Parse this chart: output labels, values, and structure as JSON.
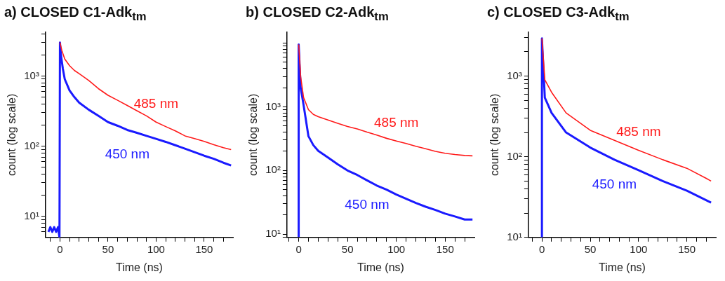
{
  "chart_data": [
    {
      "type": "line",
      "title": "a) CLOSED C1-Adk$_{tm}$",
      "xlabel": "Time (ns)",
      "ylabel": "count (log scale)",
      "log": true,
      "grid": false,
      "legend": false,
      "marker": "none",
      "xlim": [
        -15,
        180
      ],
      "ylim": [
        5,
        4200
      ],
      "xticks": [
        {
          "value": -10,
          "label": null
        },
        0,
        {
          "value": 10,
          "label": null
        },
        {
          "value": 20,
          "label": null
        },
        {
          "value": 30,
          "label": null
        },
        {
          "value": 40,
          "label": null
        },
        50,
        {
          "value": 60,
          "label": null
        },
        {
          "value": 70,
          "label": null
        },
        {
          "value": 80,
          "label": null
        },
        {
          "value": 90,
          "label": null
        },
        100,
        {
          "value": 110,
          "label": null
        },
        {
          "value": 120,
          "label": null
        },
        {
          "value": 130,
          "label": null
        },
        {
          "value": 140,
          "label": null
        },
        150,
        {
          "value": 160,
          "label": null
        },
        {
          "value": 170,
          "label": null
        }
      ],
      "yticks": [
        {
          "value": 6,
          "label": null
        },
        {
          "value": 7,
          "label": null
        },
        {
          "value": 8,
          "label": null
        },
        {
          "value": 9,
          "label": null
        },
        {
          "value": 10,
          "label": "10¹"
        },
        {
          "value": 20,
          "label": null
        },
        {
          "value": 30,
          "label": null
        },
        {
          "value": 40,
          "label": null
        },
        {
          "value": 50,
          "label": null
        },
        {
          "value": 60,
          "label": null
        },
        {
          "value": 70,
          "label": null
        },
        {
          "value": 80,
          "label": null
        },
        {
          "value": 90,
          "label": null
        },
        {
          "value": 100,
          "label": "10²"
        },
        {
          "value": 200,
          "label": null
        },
        {
          "value": 300,
          "label": null
        },
        {
          "value": 400,
          "label": null
        },
        {
          "value": 500,
          "label": null
        },
        {
          "value": 600,
          "label": null
        },
        {
          "value": 700,
          "label": null
        },
        {
          "value": 800,
          "label": null
        },
        {
          "value": 900,
          "label": null
        },
        {
          "value": 1000,
          "label": "10³"
        },
        {
          "value": 2000,
          "label": null
        },
        {
          "value": 3000,
          "label": null
        },
        {
          "value": 4000,
          "label": null
        }
      ],
      "series": [
        {
          "name": "485 nm",
          "color": "#ff1a1a",
          "x": [
            0,
            2,
            5,
            10,
            15,
            20,
            30,
            40,
            50,
            60,
            70,
            80,
            90,
            100,
            110,
            120,
            130,
            140,
            150,
            160,
            170,
            178
          ],
          "values": [
            3000,
            2300,
            1740,
            1400,
            1200,
            1080,
            860,
            660,
            530,
            450,
            380,
            320,
            270,
            220,
            190,
            165,
            140,
            128,
            117,
            105,
            95,
            89
          ]
        },
        {
          "name": "450 nm",
          "color": "#1a1aff",
          "x": [
            -12,
            -10,
            -8,
            -6,
            -4,
            -2,
            -0.5,
            0,
            1,
            3,
            5,
            10,
            15,
            20,
            30,
            40,
            50,
            60,
            70,
            80,
            90,
            100,
            110,
            120,
            130,
            140,
            150,
            160,
            170,
            178
          ],
          "values": [
            6,
            7,
            6,
            7,
            6,
            7,
            5,
            3000,
            2000,
            1270,
            900,
            620,
            500,
            417,
            330,
            270,
            220,
            195,
            170,
            155,
            140,
            127,
            115,
            103,
            92,
            82,
            73,
            66,
            58,
            53
          ]
        }
      ]
    },
    {
      "type": "line",
      "title": "b) CLOSED C2-Adk$_{tm}$",
      "xlabel": "Time (ns)",
      "ylabel": "count (log scale)",
      "log": true,
      "grid": false,
      "legend": false,
      "marker": "none",
      "xlim": [
        -12,
        180
      ],
      "ylim": [
        8.9,
        14800
      ],
      "xticks": [
        {
          "value": -10,
          "label": null
        },
        0,
        {
          "value": 10,
          "label": null
        },
        {
          "value": 20,
          "label": null
        },
        {
          "value": 30,
          "label": null
        },
        {
          "value": 40,
          "label": null
        },
        50,
        {
          "value": 60,
          "label": null
        },
        {
          "value": 70,
          "label": null
        },
        {
          "value": 80,
          "label": null
        },
        {
          "value": 90,
          "label": null
        },
        100,
        {
          "value": 110,
          "label": null
        },
        {
          "value": 120,
          "label": null
        },
        {
          "value": 130,
          "label": null
        },
        {
          "value": 140,
          "label": null
        },
        150,
        {
          "value": 160,
          "label": null
        },
        {
          "value": 170,
          "label": null
        }
      ],
      "yticks": [
        {
          "value": 9,
          "label": null
        },
        {
          "value": 10,
          "label": "10¹"
        },
        {
          "value": 20,
          "label": null
        },
        {
          "value": 30,
          "label": null
        },
        {
          "value": 40,
          "label": null
        },
        {
          "value": 50,
          "label": null
        },
        {
          "value": 60,
          "label": null
        },
        {
          "value": 70,
          "label": null
        },
        {
          "value": 80,
          "label": null
        },
        {
          "value": 90,
          "label": null
        },
        {
          "value": 100,
          "label": "10²"
        },
        {
          "value": 200,
          "label": null
        },
        {
          "value": 300,
          "label": null
        },
        {
          "value": 400,
          "label": null
        },
        {
          "value": 500,
          "label": null
        },
        {
          "value": 600,
          "label": null
        },
        {
          "value": 700,
          "label": null
        },
        {
          "value": 800,
          "label": null
        },
        {
          "value": 900,
          "label": null
        },
        {
          "value": 1000,
          "label": "10³"
        },
        {
          "value": 2000,
          "label": null
        },
        {
          "value": 3000,
          "label": null
        },
        {
          "value": 4000,
          "label": null
        },
        {
          "value": 5000,
          "label": null
        },
        {
          "value": 6000,
          "label": null
        },
        {
          "value": 7000,
          "label": null
        },
        {
          "value": 8000,
          "label": null
        },
        {
          "value": 9000,
          "label": null
        },
        {
          "value": 10000,
          "label": null
        }
      ],
      "series": [
        {
          "name": "485 nm",
          "color": "#ff1a1a",
          "x": [
            0,
            2,
            5,
            10,
            15,
            20,
            30,
            40,
            50,
            60,
            70,
            80,
            90,
            100,
            110,
            120,
            130,
            140,
            150,
            160,
            170,
            178
          ],
          "values": [
            9500,
            3000,
            1400,
            900,
            760,
            700,
            620,
            550,
            490,
            450,
            400,
            360,
            320,
            290,
            265,
            240,
            220,
            200,
            186,
            178,
            172,
            170
          ]
        },
        {
          "name": "450 nm",
          "color": "#1a1aff",
          "x": [
            0,
            0,
            2,
            5,
            10,
            15,
            20,
            30,
            40,
            50,
            60,
            70,
            80,
            90,
            100,
            110,
            120,
            130,
            140,
            150,
            160,
            170,
            178
          ],
          "values": [
            9,
            9500,
            2000,
            1070,
            345,
            250,
            204,
            160,
            125,
            100,
            85,
            70,
            58,
            50,
            42,
            36,
            31,
            27,
            24,
            21,
            19,
            17,
            17
          ]
        }
      ]
    },
    {
      "type": "line",
      "title": "c) CLOSED C3-Adk$_{tm}$",
      "xlabel": "Time (ns)",
      "ylabel": "count (log scale)",
      "log": true,
      "grid": false,
      "legend": false,
      "marker": "none",
      "xlim": [
        -14,
        180
      ],
      "ylim": [
        10,
        3500
      ],
      "xticks": [
        {
          "value": -10,
          "label": null
        },
        0,
        {
          "value": 10,
          "label": null
        },
        {
          "value": 20,
          "label": null
        },
        {
          "value": 30,
          "label": null
        },
        {
          "value": 40,
          "label": null
        },
        50,
        {
          "value": 60,
          "label": null
        },
        {
          "value": 70,
          "label": null
        },
        {
          "value": 80,
          "label": null
        },
        {
          "value": 90,
          "label": null
        },
        100,
        {
          "value": 110,
          "label": null
        },
        {
          "value": 120,
          "label": null
        },
        {
          "value": 130,
          "label": null
        },
        {
          "value": 140,
          "label": null
        },
        150,
        {
          "value": 160,
          "label": null
        },
        {
          "value": 170,
          "label": null
        }
      ],
      "yticks": [
        {
          "value": 10,
          "label": "10¹"
        },
        {
          "value": 20,
          "label": null
        },
        {
          "value": 30,
          "label": null
        },
        {
          "value": 40,
          "label": null
        },
        {
          "value": 50,
          "label": null
        },
        {
          "value": 60,
          "label": null
        },
        {
          "value": 70,
          "label": null
        },
        {
          "value": 80,
          "label": null
        },
        {
          "value": 90,
          "label": null
        },
        {
          "value": 100,
          "label": "10²"
        },
        {
          "value": 200,
          "label": null
        },
        {
          "value": 300,
          "label": null
        },
        {
          "value": 400,
          "label": null
        },
        {
          "value": 500,
          "label": null
        },
        {
          "value": 600,
          "label": null
        },
        {
          "value": 700,
          "label": null
        },
        {
          "value": 800,
          "label": null
        },
        {
          "value": 900,
          "label": null
        },
        {
          "value": 1000,
          "label": "10³"
        },
        {
          "value": 2000,
          "label": null
        },
        {
          "value": 3000,
          "label": null
        }
      ],
      "series": [
        {
          "name": "485 nm",
          "color": "#ff1a1a",
          "x": [
            0,
            3,
            10,
            25,
            50,
            75,
            100,
            125,
            150,
            170,
            175
          ],
          "values": [
            2940,
            900,
            630,
            350,
            213,
            160,
            120,
            92,
            72,
            54,
            50
          ]
        },
        {
          "name": "450 nm",
          "color": "#1a1aff",
          "x": [
            0,
            0,
            3,
            10,
            25,
            50,
            75,
            100,
            125,
            150,
            175
          ],
          "values": [
            10,
            2940,
            540,
            350,
            200,
            130,
            92,
            68,
            50,
            38,
            27
          ]
        }
      ]
    }
  ]
}
